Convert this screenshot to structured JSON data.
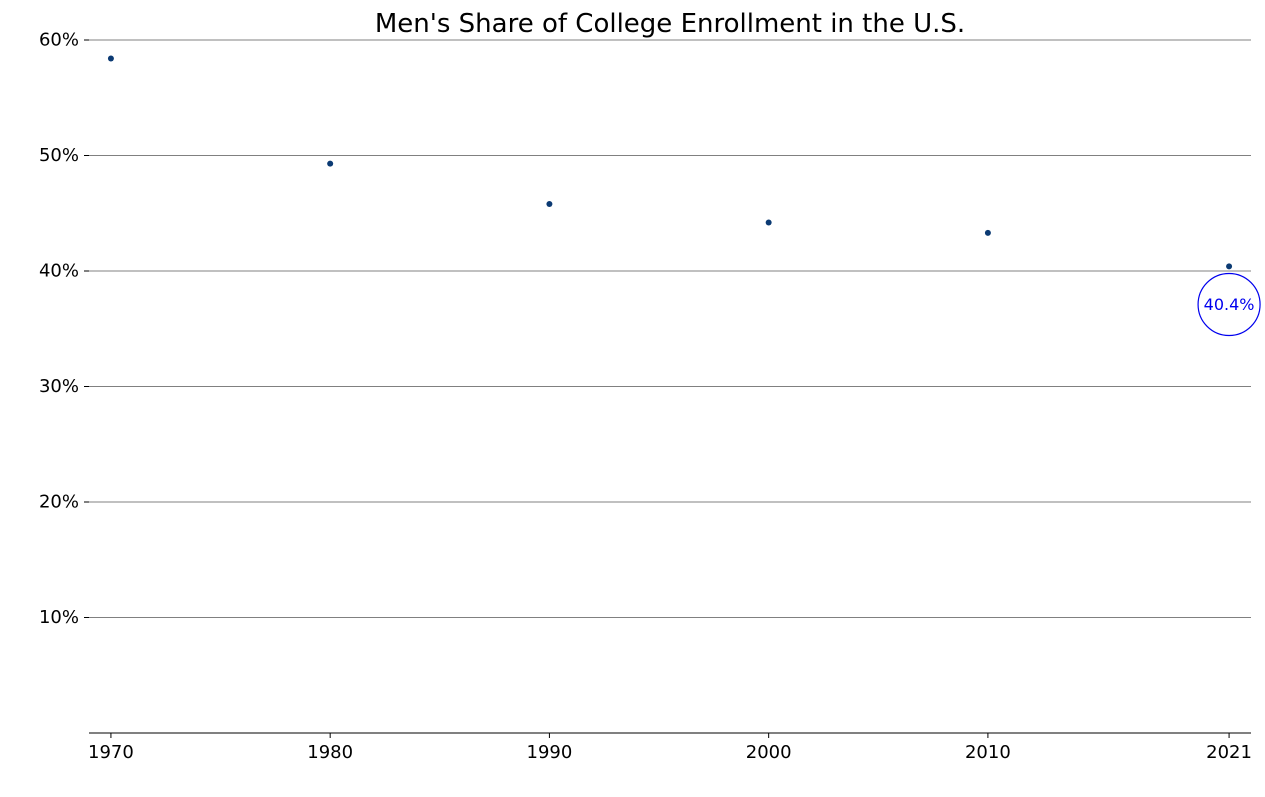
{
  "chart_data": {
    "type": "scatter",
    "title": "Men's Share of College Enrollment in the U.S.",
    "xlabel": "",
    "ylabel": "",
    "x": [
      1970,
      1980,
      1990,
      2000,
      2010,
      2021
    ],
    "x_tick_labels": [
      "1970",
      "1980",
      "1990",
      "2000",
      "2010",
      "2021"
    ],
    "xlim": [
      1969,
      2022
    ],
    "series": [
      {
        "values": [
          58.4,
          49.3,
          45.8,
          44.2,
          43.3,
          40.4
        ],
        "color": "#0b3a73"
      }
    ],
    "ylim": [
      0,
      60
    ],
    "y_ticks": [
      10,
      20,
      30,
      40,
      50,
      60
    ],
    "y_tick_labels": [
      "10%",
      "20%",
      "30%",
      "40%",
      "50%",
      "60%"
    ],
    "grid": "horizontal",
    "grid_color": "#808080",
    "annotation": {
      "x": 2021,
      "y": 37.1,
      "text": "40.4%",
      "color": "#0000ee",
      "shape": "circle"
    }
  }
}
